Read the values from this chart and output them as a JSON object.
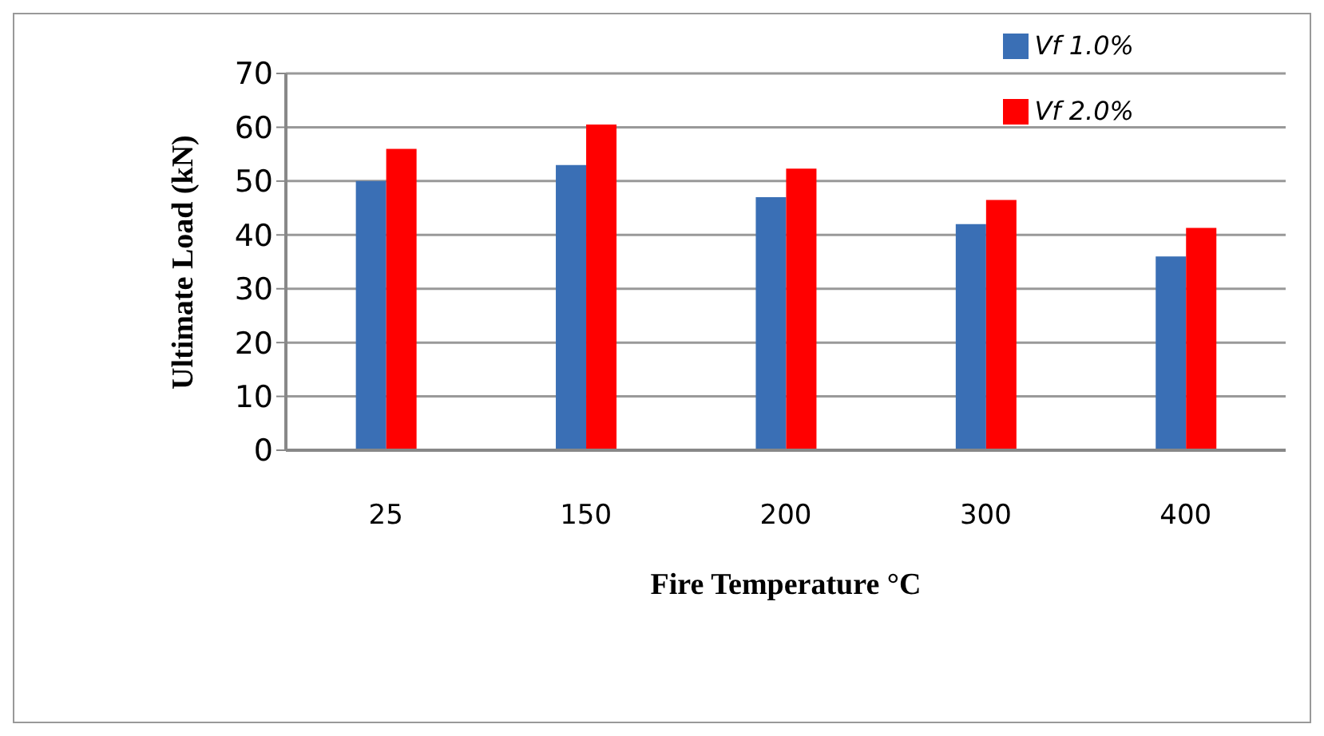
{
  "chart_data": {
    "type": "bar",
    "xlabel": "Fire Temperature °C",
    "ylabel": "Ultimate Load (kN)",
    "categories": [
      "25",
      "150",
      "200",
      "300",
      "400"
    ],
    "series": [
      {
        "name": "Vf 1.0%",
        "color": "#3a6fb5",
        "values": [
          50,
          53,
          47,
          42,
          36
        ]
      },
      {
        "name": "Vf 2.0%",
        "color": "#ff0000",
        "values": [
          56,
          60.5,
          52.3,
          46.5,
          41.3
        ]
      }
    ],
    "ylim": [
      0,
      70
    ],
    "yticks": [
      0,
      10,
      20,
      30,
      40,
      50,
      60,
      70
    ],
    "grid": "y",
    "legend": "top right"
  }
}
